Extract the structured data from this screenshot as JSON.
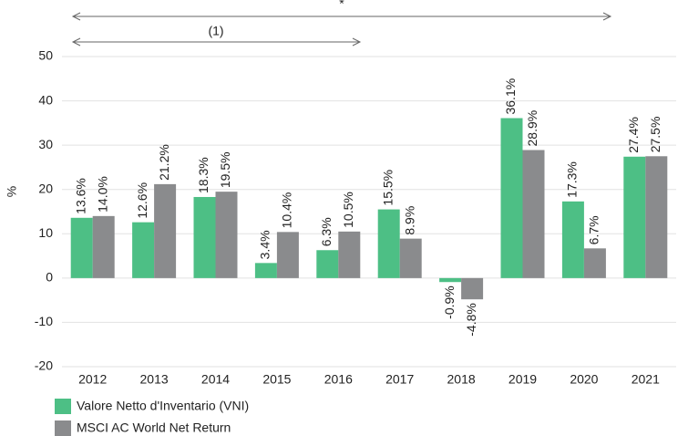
{
  "chart_data": {
    "type": "bar",
    "y_label": "%",
    "annotations": [
      "*",
      "(1)"
    ],
    "categories": [
      "2012",
      "2013",
      "2014",
      "2015",
      "2016",
      "2017",
      "2018",
      "2019",
      "2020",
      "2021"
    ],
    "series": [
      {
        "name": "Valore Netto d'Inventario (VNI)",
        "color": "#4dbf85",
        "values": [
          13.6,
          12.6,
          18.3,
          3.4,
          6.3,
          15.5,
          -0.9,
          36.1,
          17.3,
          27.4
        ],
        "value_labels": [
          "13.6%",
          "12.6%",
          "18.3%",
          "3.4%",
          "6.3%",
          "15.5%",
          "-0.9%",
          "36.1%",
          "17.3%",
          "27.4%"
        ]
      },
      {
        "name": "MSCI AC World Net Return",
        "color": "#8a8b8d",
        "values": [
          14.0,
          21.2,
          19.5,
          10.4,
          10.5,
          8.9,
          -4.8,
          28.9,
          6.7,
          27.5
        ],
        "value_labels": [
          "14.0%",
          "21.2%",
          "19.5%",
          "10.4%",
          "10.5%",
          "8.9%",
          "-4.8%",
          "28.9%",
          "6.7%",
          "27.5%"
        ]
      }
    ],
    "ylim": [
      -20,
      50
    ],
    "yticks": [
      -20,
      -10,
      0,
      10,
      20,
      30,
      40,
      50
    ],
    "grid": true
  }
}
